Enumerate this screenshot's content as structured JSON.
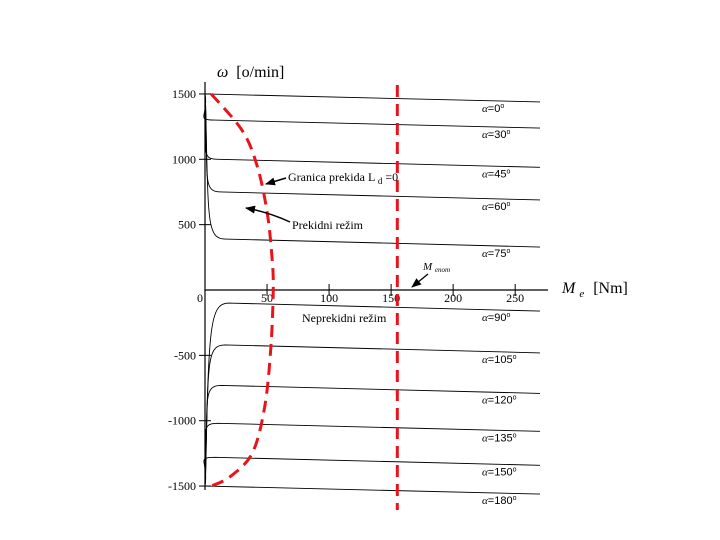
{
  "chart_data": {
    "type": "line",
    "xlabel": "M",
    "xlabel_sub": "e",
    "xlabel_unit": "[Nm]",
    "ylabel_symbol": "ω",
    "ylabel_unit": "[o/min]",
    "xlim": [
      0,
      270
    ],
    "ylim": [
      -1620,
      1650
    ],
    "x_ticks": [
      {
        "value": 50,
        "label": "50"
      },
      {
        "value": 100,
        "label": "100"
      },
      {
        "value": 150,
        "label": "150"
      },
      {
        "value": 200,
        "label": "200"
      },
      {
        "value": 250,
        "label": "250"
      }
    ],
    "origin_label": "0",
    "y_ticks": [
      {
        "value": 1500,
        "label": "1500"
      },
      {
        "value": 1000,
        "label": "1000"
      },
      {
        "value": 500,
        "label": "500"
      },
      {
        "value": -500,
        "label": "-500"
      },
      {
        "value": -1000,
        "label": "-1000"
      },
      {
        "value": -1500,
        "label": "-1500"
      }
    ],
    "series": [
      {
        "name": "α=0°",
        "label_alpha": "α",
        "label_value": "=0",
        "label_deg": "o",
        "speed": 1500
      },
      {
        "name": "α=30°",
        "label_alpha": "α",
        "label_value": "=30",
        "label_deg": "o",
        "speed": 1300
      },
      {
        "name": "α=45°",
        "label_alpha": "α",
        "label_value": "=45",
        "label_deg": "o",
        "speed": 1000
      },
      {
        "name": "α=60°",
        "label_alpha": "α",
        "label_value": "=60",
        "label_deg": "o",
        "speed": 750
      },
      {
        "name": "α=75°",
        "label_alpha": "α",
        "label_value": "=75",
        "label_deg": "o",
        "speed": 390
      },
      {
        "name": "α=90°",
        "label_alpha": "α",
        "label_value": "=90",
        "label_deg": "o",
        "speed": -100
      },
      {
        "name": "α=105°",
        "label_alpha": "α",
        "label_value": "=105",
        "label_deg": "o",
        "speed": -420
      },
      {
        "name": "α=120°",
        "label_alpha": "α",
        "label_value": "=120",
        "label_deg": "o",
        "speed": -730
      },
      {
        "name": "α=135°",
        "label_alpha": "α",
        "label_value": "=135",
        "label_deg": "o",
        "speed": -1020
      },
      {
        "name": "α=150°",
        "label_alpha": "α",
        "label_value": "=150",
        "label_deg": "o",
        "speed": -1280
      },
      {
        "name": "α=180°",
        "label_alpha": "α",
        "label_value": "=180",
        "label_deg": "o",
        "speed": -1500
      }
    ],
    "red_limit_line": {
      "x": 155,
      "color": "#e8141b",
      "style": "dashed"
    },
    "boundary_curve": {
      "color": "#e8141b",
      "style": "dashed",
      "points": [
        {
          "x": 5,
          "y": 1500
        },
        {
          "x": 30,
          "y": 1220
        },
        {
          "x": 42,
          "y": 950
        },
        {
          "x": 50,
          "y": 600
        },
        {
          "x": 54,
          "y": 250
        },
        {
          "x": 55,
          "y": 0
        },
        {
          "x": 53,
          "y": -450
        },
        {
          "x": 48,
          "y": -900
        },
        {
          "x": 38,
          "y": -1250
        },
        {
          "x": 20,
          "y": -1430
        },
        {
          "x": 5,
          "y": -1500
        }
      ]
    },
    "annotations": {
      "granica": {
        "text_main": "Granica prekida L",
        "text_sub": "d",
        "text_end": "=0"
      },
      "prekidni": {
        "text": "Prekidni režim"
      },
      "neprekidni": {
        "text": "Neprekidni režim"
      },
      "mnom": {
        "text_main": "M",
        "text_sub": "enom"
      }
    }
  }
}
